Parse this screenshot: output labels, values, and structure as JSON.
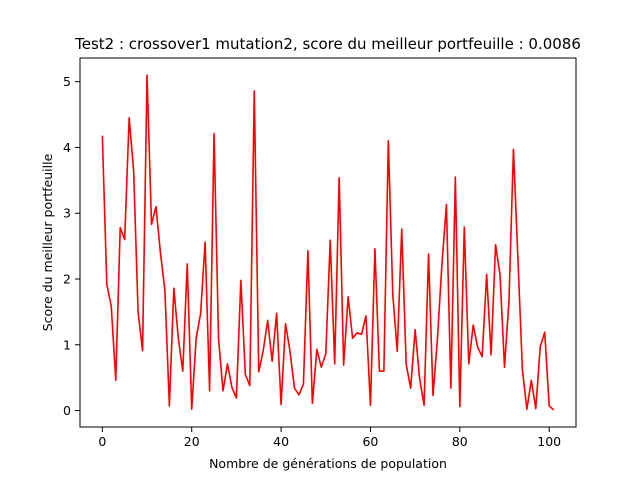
{
  "chart_data": {
    "type": "line",
    "title": "Test2 : crossover1 mutation2, score du meilleur portfeuille : 0.0086",
    "xlabel": "Nombre de générations de population",
    "ylabel": "Score du meilleur portfeuille",
    "xlim": [
      -5,
      106
    ],
    "ylim": [
      -0.25,
      5.36
    ],
    "xticks": [
      0,
      20,
      40,
      60,
      80,
      100
    ],
    "yticks": [
      0,
      1,
      2,
      3,
      4,
      5
    ],
    "grid": false,
    "line_color": "#ff0000",
    "series": [
      {
        "x": [
          0,
          1,
          2,
          3,
          4,
          5,
          6,
          7,
          8,
          9,
          10,
          11,
          12,
          13,
          14,
          15,
          16,
          17,
          18,
          19,
          20,
          21,
          22,
          23,
          24,
          25,
          26,
          27,
          28,
          29,
          30,
          31,
          32,
          33,
          34,
          35,
          36,
          37,
          38,
          39,
          40,
          41,
          42,
          43,
          44,
          45,
          46,
          47,
          48,
          49,
          50,
          51,
          52,
          53,
          54,
          55,
          56,
          57,
          58,
          59,
          60,
          61,
          62,
          63,
          64,
          65,
          66,
          67,
          68,
          69,
          70,
          71,
          72,
          73,
          74,
          75,
          76,
          77,
          78,
          79,
          80,
          81,
          82,
          83,
          84,
          85,
          86,
          87,
          88,
          89,
          90,
          91,
          92,
          93,
          94,
          95,
          96,
          97,
          98,
          99,
          100,
          101
        ],
        "values": [
          4.18,
          1.92,
          1.58,
          0.46,
          2.78,
          2.6,
          4.45,
          3.65,
          1.5,
          0.91,
          5.1,
          2.83,
          3.1,
          2.4,
          1.83,
          0.07,
          1.86,
          1.1,
          0.6,
          2.23,
          0.02,
          1.1,
          1.48,
          2.56,
          0.3,
          4.21,
          1.1,
          0.3,
          0.71,
          0.35,
          0.19,
          1.98,
          0.55,
          0.38,
          4.86,
          0.59,
          0.91,
          1.37,
          0.75,
          1.48,
          0.09,
          1.32,
          0.9,
          0.34,
          0.24,
          0.4,
          2.43,
          0.11,
          0.93,
          0.66,
          0.86,
          2.59,
          0.71,
          3.54,
          0.69,
          1.73,
          1.1,
          1.18,
          1.16,
          1.44,
          0.08,
          2.46,
          0.6,
          0.6,
          4.1,
          1.76,
          0.9,
          2.76,
          0.7,
          0.34,
          1.23,
          0.49,
          0.08,
          2.38,
          0.23,
          1.1,
          2.23,
          3.13,
          0.34,
          3.55,
          0.06,
          2.79,
          0.71,
          1.3,
          0.96,
          0.82,
          2.07,
          0.85,
          2.52,
          2.06,
          0.66,
          1.67,
          3.97,
          2.31,
          0.63,
          0.02,
          0.46,
          0.03,
          0.97,
          1.19,
          0.07,
          0.01
        ]
      }
    ]
  }
}
